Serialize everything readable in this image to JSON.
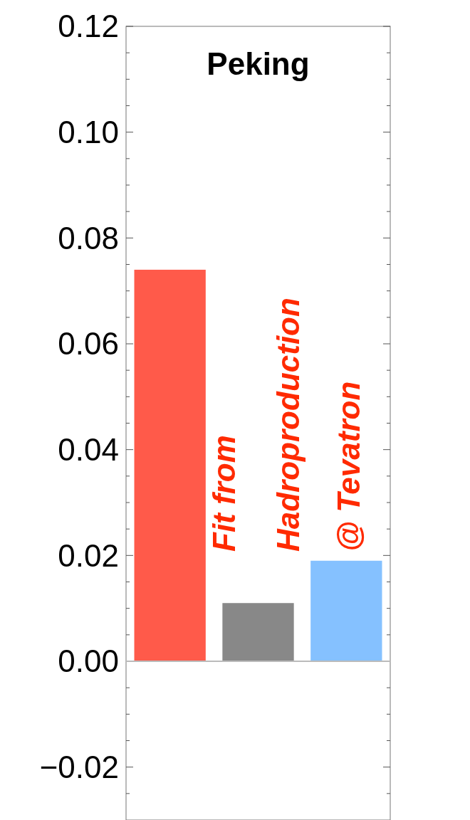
{
  "chart_data": {
    "type": "bar",
    "title": "Peking",
    "categories": [
      null,
      null,
      null
    ],
    "values": [
      0.074,
      0.011,
      0.019
    ],
    "colors": [
      "#ff5a4a",
      "#888888",
      "#85c1ff"
    ],
    "ylim": [
      -0.03,
      0.12
    ],
    "yticks": [
      {
        "value": -0.025,
        "label": null
      },
      {
        "value": -0.02,
        "label": "−0.02"
      },
      {
        "value": -0.015,
        "label": null
      },
      {
        "value": -0.01,
        "label": null
      },
      {
        "value": -0.005,
        "label": null
      },
      {
        "value": 0,
        "label": "0.00"
      },
      {
        "value": 0.005,
        "label": null
      },
      {
        "value": 0.01,
        "label": null
      },
      {
        "value": 0.015,
        "label": null
      },
      {
        "value": 0.02,
        "label": "0.02"
      },
      {
        "value": 0.025,
        "label": null
      },
      {
        "value": 0.03,
        "label": null
      },
      {
        "value": 0.035,
        "label": null
      },
      {
        "value": 0.04,
        "label": "0.04"
      },
      {
        "value": 0.045,
        "label": null
      },
      {
        "value": 0.05,
        "label": null
      },
      {
        "value": 0.055,
        "label": null
      },
      {
        "value": 0.06,
        "label": "0.06"
      },
      {
        "value": 0.065,
        "label": null
      },
      {
        "value": 0.07,
        "label": null
      },
      {
        "value": 0.075,
        "label": null
      },
      {
        "value": 0.08,
        "label": "0.08"
      },
      {
        "value": 0.085,
        "label": null
      },
      {
        "value": 0.09,
        "label": null
      },
      {
        "value": 0.095,
        "label": null
      },
      {
        "value": 0.1,
        "label": "0.10"
      },
      {
        "value": 0.105,
        "label": null
      },
      {
        "value": 0.11,
        "label": null
      },
      {
        "value": 0.115,
        "label": null
      },
      {
        "value": 0.12,
        "label": "0.12"
      }
    ],
    "annotations": [
      "Fit from",
      "Hadroproduction",
      "@ Tevatron"
    ]
  }
}
